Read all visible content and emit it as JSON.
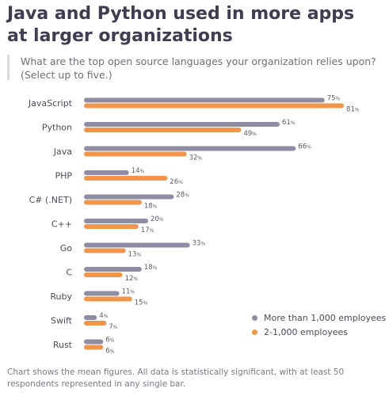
{
  "header": {
    "title": "Java and Python used in more apps at larger organizations",
    "subtitle": "What are the top open source languages your organization relies upon? (Select up to five.)"
  },
  "footnote": "Chart shows the mean figures. All data is statistically significant, with at least 50 respondents represented in any single bar.",
  "colors": {
    "series_large": "#8e8da3",
    "series_small": "#f0954a",
    "label_text": "#4a4a58",
    "value_text": "#5a5a68"
  },
  "chart_data": {
    "type": "bar",
    "orientation": "horizontal",
    "categories": [
      "JavaScript",
      "Python",
      "Java",
      "PHP",
      "C# (.NET)",
      "C++",
      "Go",
      "C",
      "Ruby",
      "Swift",
      "Rust"
    ],
    "series": [
      {
        "name": "More than 1,000 employees",
        "values": [
          75,
          61,
          66,
          14,
          28,
          20,
          33,
          18,
          11,
          4,
          6
        ]
      },
      {
        "name": "2-1,000 employees",
        "values": [
          81,
          49,
          32,
          26,
          18,
          17,
          13,
          12,
          15,
          7,
          6
        ]
      }
    ],
    "value_suffix": "%",
    "xlim": [
      0,
      100
    ],
    "legend_position": "bottom-right",
    "grid": false
  }
}
